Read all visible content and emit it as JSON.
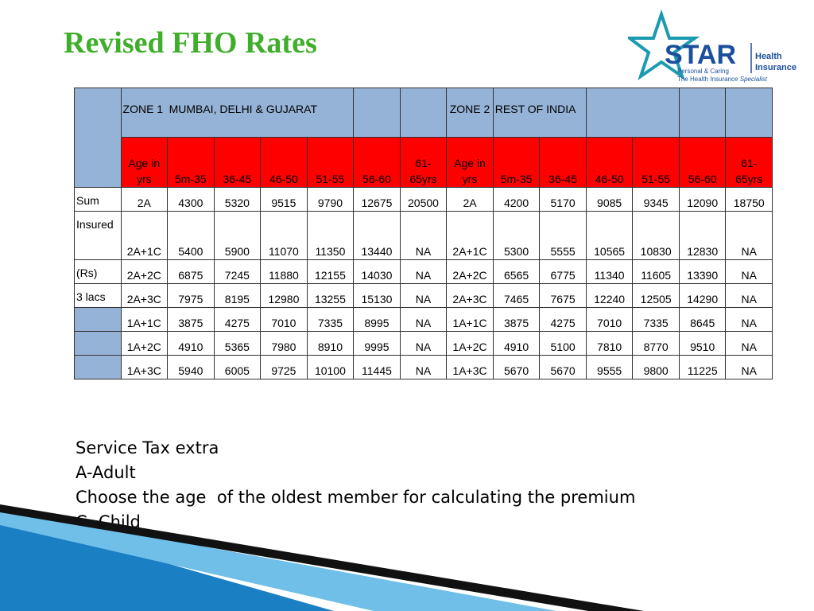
{
  "header": {
    "title": "Revised FHO Rates"
  },
  "logo": {
    "brand": "STAR",
    "tagline": "Personal & Caring",
    "slogan_prefix": "The Health Insurance",
    "slogan_emphasis": "Specialist",
    "product_line1": "Health",
    "product_line2": "Insurance"
  },
  "table": {
    "zone1": {
      "label": "ZONE 1",
      "name": "MUMBAI, DELHI & GUJARAT"
    },
    "zone2": {
      "label": "ZONE 2",
      "name": "REST OF INDIA"
    },
    "age_header": [
      "Age in yrs",
      "5m-35",
      "36-45",
      "46-50",
      "51-55",
      "56-60",
      "61-65yrs",
      "Age in yrs",
      "5m-35",
      "36-45",
      "46-50",
      "51-55",
      "56-60",
      "61-65yrs"
    ],
    "rows": [
      {
        "label": "Sum",
        "cells": [
          "2A",
          "4300",
          "5320",
          "9515",
          "9790",
          "12675",
          "20500",
          "2A",
          "4200",
          "5170",
          "9085",
          "9345",
          "12090",
          "18750"
        ]
      },
      {
        "label": "Insured",
        "cells": [
          "2A+1C",
          "5400",
          "5900",
          "11070",
          "11350",
          "13440",
          "NA",
          "2A+1C",
          "5300",
          "5555",
          "10565",
          "10830",
          "12830",
          "NA"
        ]
      },
      {
        "label": "(Rs)",
        "cells": [
          "2A+2C",
          "6875",
          "7245",
          "11880",
          "12155",
          "14030",
          "NA",
          "2A+2C",
          "6565",
          "6775",
          "11340",
          "11605",
          "13390",
          "NA"
        ]
      },
      {
        "label": "3 lacs",
        "cells": [
          "2A+3C",
          "7975",
          "8195",
          "12980",
          "13255",
          "15130",
          "NA",
          "2A+3C",
          "7465",
          "7675",
          "12240",
          "12505",
          "14290",
          "NA"
        ]
      },
      {
        "cells": [
          "1A+1C",
          "3875",
          "4275",
          "7010",
          "7335",
          "8995",
          "NA",
          "1A+1C",
          "3875",
          "4275",
          "7010",
          "7335",
          "8645",
          "NA"
        ]
      },
      {
        "cells": [
          "1A+2C",
          "4910",
          "5365",
          "7980",
          "8910",
          "9995",
          "NA",
          "1A+2C",
          "4910",
          "5100",
          "7810",
          "8770",
          "9510",
          "NA"
        ]
      },
      {
        "cells": [
          "1A+3C",
          "5940",
          "6005",
          "9725",
          "10100",
          "11445",
          "NA",
          "1A+3C",
          "5670",
          "5670",
          "9555",
          "9800",
          "11225",
          "NA"
        ]
      }
    ]
  },
  "notes": [
    "Service Tax extra",
    "A-Adult",
    "Choose the age  of the oldest member for calculating the premium",
    "C- Child"
  ]
}
